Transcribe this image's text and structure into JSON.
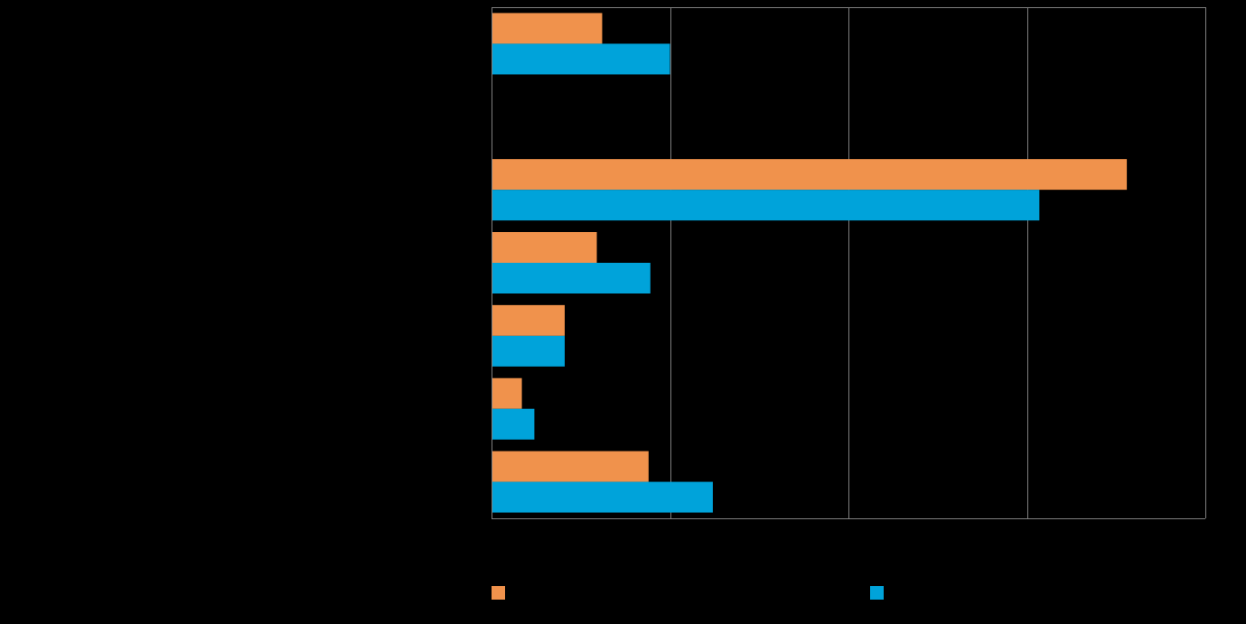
{
  "chart_data": {
    "type": "bar",
    "orientation": "horizontal",
    "categories": [
      "",
      "",
      "",
      "",
      "",
      "",
      ""
    ],
    "series": [
      {
        "color": "#F0924C",
        "values": [
          6.2,
          0,
          35.6,
          5.9,
          4.1,
          1.7,
          8.8
        ]
      },
      {
        "color": "#00A3DA",
        "values": [
          10.0,
          0,
          30.7,
          8.9,
          4.1,
          2.4,
          12.4
        ]
      }
    ],
    "xlim": [
      0,
      40
    ],
    "x_gridlines": [
      10,
      20,
      30,
      40
    ],
    "grid": true,
    "legend": "bottom",
    "colors": {
      "background": "#000000",
      "grid": "#808080",
      "axis": "#808080"
    }
  }
}
